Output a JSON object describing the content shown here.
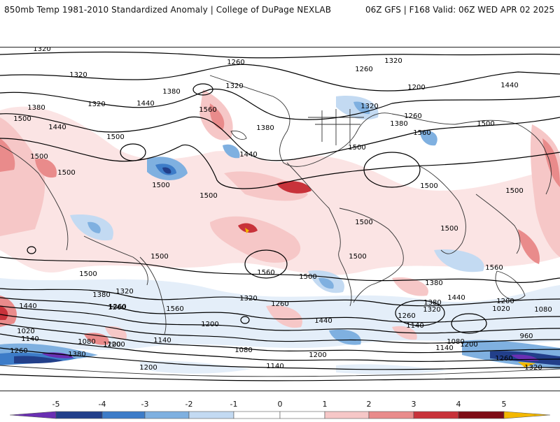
{
  "header": {
    "title": "850mb Temp 1981-2010 Standardized Anomaly | College of DuPage NEXLAB",
    "run_info": "06Z GFS | F168 Valid: 06Z WED APR 02 2025"
  },
  "colorbar": {
    "ticks": [
      "-5",
      "-4",
      "-3",
      "-2",
      "-1",
      "0",
      "1",
      "2",
      "3",
      "4",
      "5"
    ],
    "colors": [
      "#6a2fb3",
      "#223f8a",
      "#3d7cc8",
      "#7fb0e0",
      "#c3daf2",
      "#ffffff",
      "#ffffff",
      "#f6c7c7",
      "#e98b8b",
      "#c8323a",
      "#7e0d16",
      "#f4b800"
    ]
  },
  "contour_labels": [
    "1320",
    "1260",
    "1320",
    "1260",
    "1320",
    "1320",
    "1200",
    "1380",
    "1320",
    "1440",
    "1380",
    "1440",
    "1500",
    "1560",
    "1320",
    "1260",
    "1500",
    "1440",
    "1560",
    "1380",
    "1380",
    "1500",
    "1440",
    "1500",
    "1500",
    "1500",
    "1500",
    "1500",
    "1500",
    "1500",
    "1500",
    "1500",
    "1500",
    "1500",
    "1500",
    "1500",
    "1560",
    "1560",
    "1380",
    "1320",
    "1260",
    "1320",
    "1380",
    "1260",
    "1380",
    "1320",
    "1440",
    "1200",
    "1020",
    "1080",
    "1440",
    "1260",
    "1560",
    "1440",
    "1200",
    "1140",
    "1260",
    "1200",
    "960",
    "1080",
    "1140",
    "1020",
    "1140",
    "1080",
    "1200",
    "1260",
    "1380",
    "1140",
    "1080",
    "1200",
    "1200",
    "1260",
    "1140",
    "1200",
    "1320"
  ]
}
